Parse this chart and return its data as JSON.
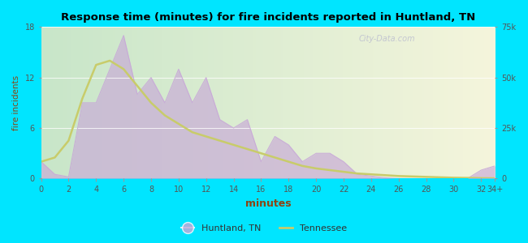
{
  "title": "Response time (minutes) for fire incidents reported in Huntland, TN",
  "xlabel": "minutes",
  "ylabel": "fire incidents",
  "background_outer": "#00e5ff",
  "x_values": [
    0,
    1,
    2,
    3,
    4,
    5,
    6,
    7,
    8,
    9,
    10,
    11,
    12,
    13,
    14,
    15,
    16,
    17,
    18,
    19,
    20,
    21,
    22,
    23,
    24,
    25,
    26,
    27,
    28,
    29,
    30,
    31,
    32,
    33
  ],
  "huntland_y": [
    2,
    0.5,
    0.2,
    9,
    9,
    13,
    17,
    10,
    12,
    9,
    13,
    9,
    12,
    7,
    6,
    7,
    2,
    5,
    4,
    2,
    3,
    3,
    2,
    0.5,
    0.3,
    0.1,
    0,
    0,
    0,
    0,
    0,
    0,
    1,
    1.5
  ],
  "tennessee_y": [
    2.0,
    2.5,
    4.5,
    9.5,
    13.5,
    14.0,
    13.0,
    11.0,
    9.0,
    7.5,
    6.5,
    5.5,
    5.0,
    4.5,
    4.0,
    3.5,
    3.0,
    2.5,
    2.0,
    1.5,
    1.2,
    1.0,
    0.8,
    0.6,
    0.5,
    0.4,
    0.3,
    0.25,
    0.2,
    0.15,
    0.1,
    0.08,
    0.05,
    0.03
  ],
  "huntland_fill_color": "#c8a8d8",
  "tennessee_line_color": "#c8cc6a",
  "ylim_left": [
    0,
    18
  ],
  "ylim_right": [
    0,
    75000
  ],
  "yticks_left": [
    0,
    6,
    12,
    18
  ],
  "yticks_right": [
    0,
    25000,
    50000,
    75000
  ],
  "ytick_right_labels": [
    "0",
    "25k",
    "50k",
    "75k"
  ],
  "tick_label_color": "#555555",
  "axis_label_color": "#8B4513",
  "legend_huntland": "Huntland, TN",
  "legend_tennessee": "Tennessee",
  "watermark": "City-Data.com",
  "grad_left_color": "#c8e6c9",
  "grad_right_color": "#f5f5dc"
}
